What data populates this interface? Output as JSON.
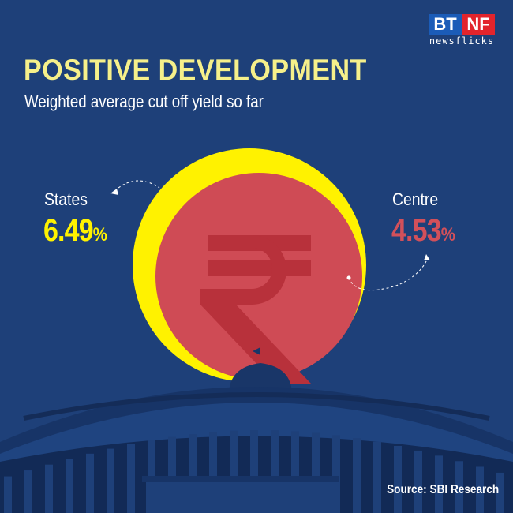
{
  "brand": {
    "logo_left": "BT",
    "logo_right": "NF",
    "logo_sub": "newsflicks"
  },
  "header": {
    "title": "POSITIVE DEVELOPMENT",
    "subtitle": "Weighted average cut off yield so far"
  },
  "states": {
    "label": "States",
    "value": "6.49",
    "unit": "%",
    "color": "#fff200"
  },
  "centre": {
    "label": "Centre",
    "value": "4.53",
    "unit": "%",
    "color": "#d2505a"
  },
  "chart_data": {
    "type": "bubble",
    "categories": [
      "States",
      "Centre"
    ],
    "values": [
      6.49,
      4.53
    ],
    "unit": "%"
  },
  "footer": {
    "source": "Source: SBI Research"
  },
  "icons": {
    "currency": "rupee-icon",
    "building": "parliament-illustration"
  }
}
